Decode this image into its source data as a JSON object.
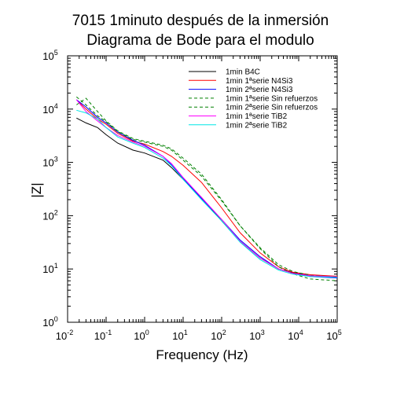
{
  "chart_data": {
    "type": "line",
    "title": [
      "7015 1minuto después de la inmersión",
      "Diagrama de Bode para el modulo"
    ],
    "xlabel": "Frequency (Hz)",
    "ylabel": "|Z|",
    "x_scale": "log",
    "y_scale": "log",
    "xlim": [
      0.01,
      100000
    ],
    "ylim": [
      1,
      100000
    ],
    "x_ticks": [
      {
        "base": "10",
        "exp": "-2",
        "value": 0.01
      },
      {
        "base": "10",
        "exp": "-1",
        "value": 0.1
      },
      {
        "base": "10",
        "exp": "0",
        "value": 1
      },
      {
        "base": "10",
        "exp": "1",
        "value": 10
      },
      {
        "base": "10",
        "exp": "2",
        "value": 100
      },
      {
        "base": "10",
        "exp": "3",
        "value": 1000
      },
      {
        "base": "10",
        "exp": "4",
        "value": 10000
      },
      {
        "base": "10",
        "exp": "5",
        "value": 100000
      }
    ],
    "y_ticks": [
      {
        "base": "10",
        "exp": "0",
        "value": 1
      },
      {
        "base": "10",
        "exp": "1",
        "value": 10
      },
      {
        "base": "10",
        "exp": "2",
        "value": 100
      },
      {
        "base": "10",
        "exp": "3",
        "value": 1000
      },
      {
        "base": "10",
        "exp": "4",
        "value": 10000
      },
      {
        "base": "10",
        "exp": "5",
        "value": 100000
      }
    ],
    "grid": false,
    "legend_position": "top-right",
    "series": [
      {
        "name": "1min B4C",
        "color": "#000000",
        "dash": "solid",
        "x": [
          0.017,
          0.03,
          0.06,
          0.1,
          0.2,
          0.5,
          1,
          3,
          5,
          10,
          30,
          100,
          300,
          1000,
          3000,
          7000,
          20000,
          100000
        ],
        "y": [
          6800,
          5500,
          4500,
          3300,
          2300,
          1700,
          1500,
          1100,
          800,
          480,
          220,
          80,
          33,
          16,
          10,
          8.5,
          7.5,
          7.2
        ]
      },
      {
        "name": "1min 1ªserie N4Si3",
        "color": "#ff0000",
        "dash": "solid",
        "x": [
          0.017,
          0.03,
          0.06,
          0.1,
          0.2,
          0.5,
          1,
          3,
          5,
          10,
          30,
          100,
          300,
          1000,
          3000,
          7000,
          20000,
          100000
        ],
        "y": [
          15000,
          10000,
          6500,
          5200,
          3500,
          2500,
          2200,
          1600,
          1300,
          880,
          420,
          140,
          48,
          20,
          11,
          8.7,
          7.8,
          7.3
        ]
      },
      {
        "name": "1min 2ªserie N4Si3",
        "color": "#0000ff",
        "dash": "solid",
        "x": [
          0.017,
          0.03,
          0.06,
          0.1,
          0.2,
          0.5,
          1,
          3,
          5,
          10,
          30,
          100,
          300,
          1000,
          3000,
          7000,
          20000,
          100000
        ],
        "y": [
          15000,
          11000,
          7000,
          5500,
          3700,
          2600,
          2100,
          1300,
          900,
          500,
          210,
          85,
          35,
          17,
          10,
          8.3,
          7.2,
          6.8
        ]
      },
      {
        "name": "1min 1ªserie Sin refuerzos",
        "color": "#008000",
        "dash": "dashed",
        "x": [
          0.017,
          0.03,
          0.06,
          0.1,
          0.2,
          0.5,
          1,
          3,
          5,
          10,
          30,
          100,
          300,
          1000,
          3000,
          7000,
          20000,
          100000
        ],
        "y": [
          17000,
          12000,
          7500,
          5800,
          3800,
          2700,
          2400,
          2000,
          1700,
          1100,
          550,
          190,
          65,
          25,
          12,
          9,
          7.6,
          7.1
        ]
      },
      {
        "name": "1min 2ªserie Sin refuerzos",
        "color": "#008000",
        "dash": "dashed",
        "x": [
          0.017,
          0.03,
          0.06,
          0.1,
          0.2,
          0.5,
          1,
          3,
          5,
          10,
          30,
          100,
          300,
          1000,
          3000,
          7000,
          20000,
          100000
        ],
        "y": [
          12000,
          16000,
          9000,
          6000,
          3900,
          2800,
          2500,
          2100,
          1800,
          1200,
          600,
          200,
          65,
          24,
          11,
          8.1,
          6.5,
          6
        ]
      },
      {
        "name": "1min 1ªserie TiB2",
        "color": "#ff00ff",
        "dash": "solid",
        "x": [
          0.017,
          0.03,
          0.06,
          0.1,
          0.2,
          0.5,
          1,
          3,
          5,
          10,
          30,
          100,
          300,
          1000,
          3000,
          7000,
          20000,
          100000
        ],
        "y": [
          15000,
          9000,
          6000,
          4500,
          3200,
          2400,
          2000,
          1300,
          950,
          520,
          220,
          85,
          33,
          16,
          10,
          8.3,
          7.5,
          7.1
        ]
      },
      {
        "name": "1min 2ªserie TiB2",
        "color": "#00e5e5",
        "dash": "solid",
        "x": [
          0.017,
          0.03,
          0.06,
          0.1,
          0.2,
          0.5,
          1,
          3,
          5,
          10,
          30,
          100,
          300,
          1000,
          3000,
          7000,
          20000,
          100000
        ],
        "y": [
          9500,
          8500,
          6500,
          4500,
          3000,
          2300,
          1900,
          1200,
          870,
          480,
          200,
          80,
          32,
          15,
          9.5,
          8,
          7.2,
          7
        ]
      }
    ]
  }
}
